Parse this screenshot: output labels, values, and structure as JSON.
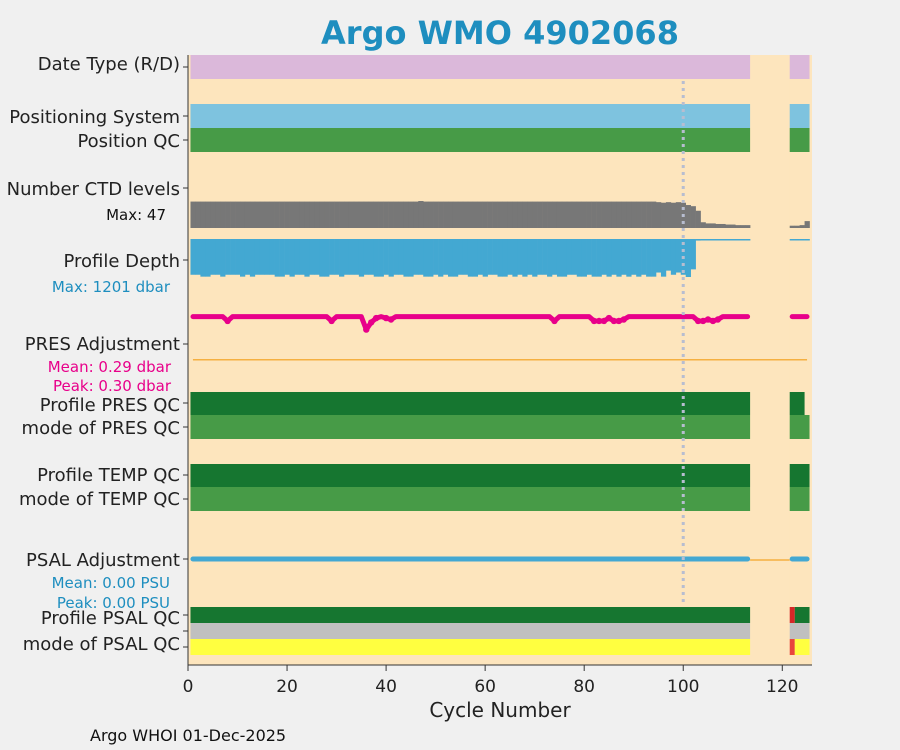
{
  "chart_data": {
    "type": "bar",
    "title": "Argo WMO 4902068",
    "xlabel": "Cycle Number",
    "xlim": [
      0,
      126
    ],
    "x_ticks": [
      "0",
      "20",
      "40",
      "60",
      "80",
      "100",
      "120"
    ],
    "x_tick_values": [
      0,
      20,
      40,
      60,
      80,
      100,
      120
    ],
    "gap_cycles": [
      114,
      121
    ],
    "marker_cycle": 100,
    "rows": [
      {
        "label": "Date Type (R/D)",
        "color": "#dbb8da",
        "ranges": [
          [
            1,
            113
          ],
          [
            122,
            125
          ]
        ]
      },
      {
        "label": "Positioning System",
        "color": "#7ec3df",
        "ranges": [
          [
            1,
            113
          ],
          [
            122,
            125
          ]
        ]
      },
      {
        "label": "Position QC",
        "color": "#479b47",
        "ranges": [
          [
            1,
            113
          ],
          [
            122,
            125
          ]
        ]
      },
      {
        "label": "Profile PRES QC",
        "color": "#167630",
        "ranges": [
          [
            1,
            113
          ],
          [
            122,
            124
          ]
        ]
      },
      {
        "label": "mode of PRES QC",
        "color": "#479b47",
        "ranges": [
          [
            1,
            113
          ],
          [
            122,
            125
          ]
        ]
      },
      {
        "label": "Profile TEMP QC",
        "color": "#167630",
        "ranges": [
          [
            1,
            113
          ],
          [
            122,
            125
          ]
        ]
      },
      {
        "label": "mode of TEMP QC",
        "color": "#479b47",
        "ranges": [
          [
            1,
            113
          ],
          [
            122,
            125
          ]
        ]
      },
      {
        "label": "Profile PSAL QC",
        "color": "#167630",
        "ranges": [
          [
            1,
            113
          ],
          [
            123,
            125
          ]
        ],
        "flags": [
          {
            "cycle": 122,
            "color": "#d62728"
          }
        ]
      },
      {
        "label": "mode of PSAL QC",
        "color": "#c0c0c0",
        "ranges": [
          [
            1,
            113
          ],
          [
            122,
            125
          ]
        ]
      },
      {
        "label": "",
        "color": "#ffff40",
        "ranges": [
          [
            1,
            113
          ],
          [
            123,
            125
          ]
        ],
        "flags": [
          {
            "cycle": 122,
            "color": "#e8463c"
          }
        ]
      }
    ],
    "ctd_levels": {
      "label": "Number CTD levels",
      "max_label": "Max: 47",
      "max": 47,
      "cycles": [
        1,
        2,
        3,
        4,
        5,
        6,
        7,
        8,
        9,
        10,
        11,
        12,
        13,
        14,
        15,
        16,
        17,
        18,
        19,
        20,
        21,
        22,
        23,
        24,
        25,
        26,
        27,
        28,
        29,
        30,
        31,
        32,
        33,
        34,
        35,
        36,
        37,
        38,
        39,
        40,
        41,
        42,
        43,
        44,
        45,
        46,
        47,
        48,
        49,
        50,
        51,
        52,
        53,
        54,
        55,
        56,
        57,
        58,
        59,
        60,
        61,
        62,
        63,
        64,
        65,
        66,
        67,
        68,
        69,
        70,
        71,
        72,
        73,
        74,
        75,
        76,
        77,
        78,
        79,
        80,
        81,
        82,
        83,
        84,
        85,
        86,
        87,
        88,
        89,
        90,
        91,
        92,
        93,
        94,
        95,
        96,
        97,
        98,
        99,
        100,
        101,
        102,
        103,
        104,
        105,
        106,
        107,
        108,
        109,
        110,
        111,
        112,
        113,
        122,
        123,
        124,
        125
      ],
      "values": [
        46,
        46,
        46,
        46,
        46,
        46,
        46,
        46,
        46,
        46,
        46,
        46,
        46,
        46,
        46,
        46,
        46,
        46,
        46,
        46,
        46,
        46,
        46,
        46,
        46,
        46,
        46,
        46,
        46,
        46,
        46,
        46,
        46,
        46,
        46,
        46,
        46,
        46,
        46,
        46,
        46,
        46,
        46,
        46,
        46,
        46,
        47,
        46,
        46,
        46,
        46,
        46,
        46,
        46,
        46,
        46,
        46,
        46,
        46,
        46,
        46,
        46,
        46,
        46,
        46,
        46,
        46,
        46,
        46,
        46,
        46,
        46,
        46,
        46,
        46,
        46,
        46,
        46,
        46,
        46,
        46,
        46,
        46,
        46,
        46,
        46,
        46,
        46,
        46,
        46,
        46,
        46,
        46,
        46,
        45,
        44,
        45,
        44,
        45,
        44,
        40,
        38,
        30,
        10,
        8,
        8,
        7,
        7,
        6,
        6,
        5,
        5,
        5,
        4,
        4,
        5,
        12
      ]
    },
    "profile_depth": {
      "label": "Profile Depth",
      "max_label": "Max: 1201 dbar",
      "max": 1201,
      "cycles": [
        1,
        2,
        3,
        4,
        5,
        6,
        7,
        8,
        9,
        10,
        11,
        12,
        13,
        14,
        15,
        16,
        17,
        18,
        19,
        20,
        21,
        22,
        23,
        24,
        25,
        26,
        27,
        28,
        29,
        30,
        31,
        32,
        33,
        34,
        35,
        36,
        37,
        38,
        39,
        40,
        41,
        42,
        43,
        44,
        45,
        46,
        47,
        48,
        49,
        50,
        51,
        52,
        53,
        54,
        55,
        56,
        57,
        58,
        59,
        60,
        61,
        62,
        63,
        64,
        65,
        66,
        67,
        68,
        69,
        70,
        71,
        72,
        73,
        74,
        75,
        76,
        77,
        78,
        79,
        80,
        81,
        82,
        83,
        84,
        85,
        86,
        87,
        88,
        89,
        90,
        91,
        92,
        93,
        94,
        95,
        96,
        97,
        98,
        99,
        100,
        101,
        102,
        103,
        104,
        105,
        106,
        107,
        108,
        109,
        110,
        111,
        112,
        113,
        122,
        123,
        124,
        125
      ],
      "values": [
        1130,
        1130,
        1190,
        1190,
        1130,
        1130,
        1190,
        1130,
        1130,
        1130,
        1190,
        1130,
        1190,
        1130,
        1130,
        1130,
        1130,
        1190,
        1190,
        1130,
        1190,
        1130,
        1130,
        1190,
        1130,
        1130,
        1190,
        1190,
        1130,
        1130,
        1190,
        1130,
        1130,
        1130,
        1190,
        1130,
        1130,
        1190,
        1190,
        1130,
        1190,
        1130,
        1130,
        1190,
        1190,
        1130,
        1130,
        1190,
        1190,
        1130,
        1190,
        1130,
        1190,
        1190,
        1130,
        1130,
        1190,
        1190,
        1130,
        1190,
        1130,
        1130,
        1190,
        1190,
        1130,
        1190,
        1130,
        1190,
        1130,
        1190,
        1130,
        1130,
        1190,
        1130,
        1190,
        1190,
        1130,
        1130,
        1190,
        1190,
        1130,
        1190,
        1190,
        1130,
        1190,
        1130,
        1190,
        1130,
        1190,
        1130,
        1190,
        1130,
        1190,
        1190,
        1060,
        1190,
        1000,
        1130,
        1060,
        1130,
        1201,
        960,
        50,
        40,
        30,
        30,
        20,
        20,
        20,
        20,
        20,
        20,
        20,
        15,
        15,
        15,
        15
      ]
    },
    "pres_adjustment": {
      "label": "PRES Adjustment",
      "mean_label": "Mean: 0.29 dbar",
      "peak_label": "Peak: 0.30 dbar",
      "ylim": [
        -0.05,
        0.36
      ],
      "cycles": [
        1,
        2,
        3,
        4,
        5,
        6,
        7,
        8,
        9,
        10,
        11,
        12,
        13,
        14,
        15,
        16,
        17,
        18,
        19,
        20,
        21,
        22,
        23,
        24,
        25,
        26,
        27,
        28,
        29,
        30,
        31,
        32,
        33,
        34,
        35,
        36,
        37,
        38,
        39,
        40,
        41,
        42,
        43,
        44,
        45,
        46,
        47,
        48,
        49,
        50,
        51,
        52,
        53,
        54,
        55,
        56,
        57,
        58,
        59,
        60,
        61,
        62,
        63,
        64,
        65,
        66,
        67,
        68,
        69,
        70,
        71,
        72,
        73,
        74,
        75,
        76,
        77,
        78,
        79,
        80,
        81,
        82,
        83,
        84,
        85,
        86,
        87,
        88,
        89,
        90,
        91,
        92,
        93,
        94,
        95,
        96,
        97,
        98,
        99,
        100,
        101,
        102,
        103,
        104,
        105,
        106,
        107,
        108,
        109,
        110,
        111,
        112,
        113,
        122,
        123,
        124,
        125
      ],
      "values": [
        0.3,
        0.3,
        0.3,
        0.3,
        0.3,
        0.3,
        0.3,
        0.27,
        0.3,
        0.3,
        0.3,
        0.3,
        0.3,
        0.3,
        0.3,
        0.3,
        0.3,
        0.3,
        0.3,
        0.3,
        0.3,
        0.3,
        0.3,
        0.3,
        0.3,
        0.3,
        0.3,
        0.3,
        0.27,
        0.3,
        0.3,
        0.3,
        0.3,
        0.3,
        0.3,
        0.21,
        0.26,
        0.29,
        0.3,
        0.29,
        0.28,
        0.3,
        0.3,
        0.3,
        0.3,
        0.3,
        0.3,
        0.3,
        0.3,
        0.3,
        0.3,
        0.3,
        0.3,
        0.3,
        0.3,
        0.3,
        0.3,
        0.3,
        0.3,
        0.3,
        0.3,
        0.3,
        0.3,
        0.3,
        0.3,
        0.3,
        0.3,
        0.3,
        0.3,
        0.3,
        0.3,
        0.3,
        0.3,
        0.27,
        0.3,
        0.3,
        0.3,
        0.3,
        0.3,
        0.3,
        0.3,
        0.27,
        0.27,
        0.27,
        0.29,
        0.27,
        0.27,
        0.28,
        0.3,
        0.3,
        0.3,
        0.3,
        0.3,
        0.3,
        0.3,
        0.3,
        0.3,
        0.3,
        0.3,
        0.3,
        0.3,
        0.3,
        0.27,
        0.27,
        0.28,
        0.27,
        0.28,
        0.3,
        0.3,
        0.3,
        0.3,
        0.3,
        0.3,
        0.3,
        0.3,
        0.3,
        0.3
      ]
    },
    "psal_adjustment": {
      "label": "PSAL Adjustment",
      "mean_label": "Mean: 0.00 PSU",
      "peak_label": "Peak: 0.00 PSU",
      "ranges": [
        [
          1,
          113
        ],
        [
          122,
          125
        ]
      ],
      "color": "#43a8d2",
      "zero_color": "#f5b041"
    },
    "footer": "Argo WHOI 01-Dec-2025"
  }
}
